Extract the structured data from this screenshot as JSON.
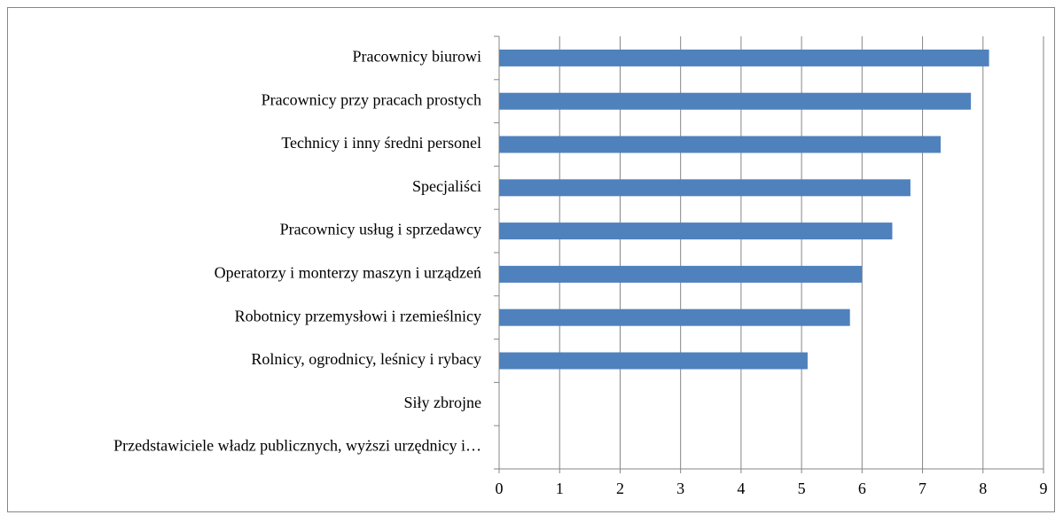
{
  "chart_data": {
    "type": "bar",
    "orientation": "horizontal",
    "categories": [
      "Pracownicy biurowi",
      "Pracownicy przy pracach prostych",
      "Technicy i inny średni personel",
      "Specjaliści",
      "Pracownicy usług i sprzedawcy",
      "Operatorzy i monterzy maszyn i urządzeń",
      "Robotnicy przemysłowi i rzemieślnicy",
      "Rolnicy, ogrodnicy, leśnicy i rybacy",
      "Siły zbrojne",
      "Przedstawiciele władz publicznych, wyższi urzędnicy i…"
    ],
    "values": [
      8.1,
      7.8,
      7.3,
      6.8,
      6.5,
      6.0,
      5.8,
      5.1,
      null,
      null
    ],
    "color": "#4f81bd",
    "xlim": [
      0,
      9
    ],
    "xticks": [
      0,
      1,
      2,
      3,
      4,
      5,
      6,
      7,
      8,
      9
    ],
    "grid": true
  }
}
